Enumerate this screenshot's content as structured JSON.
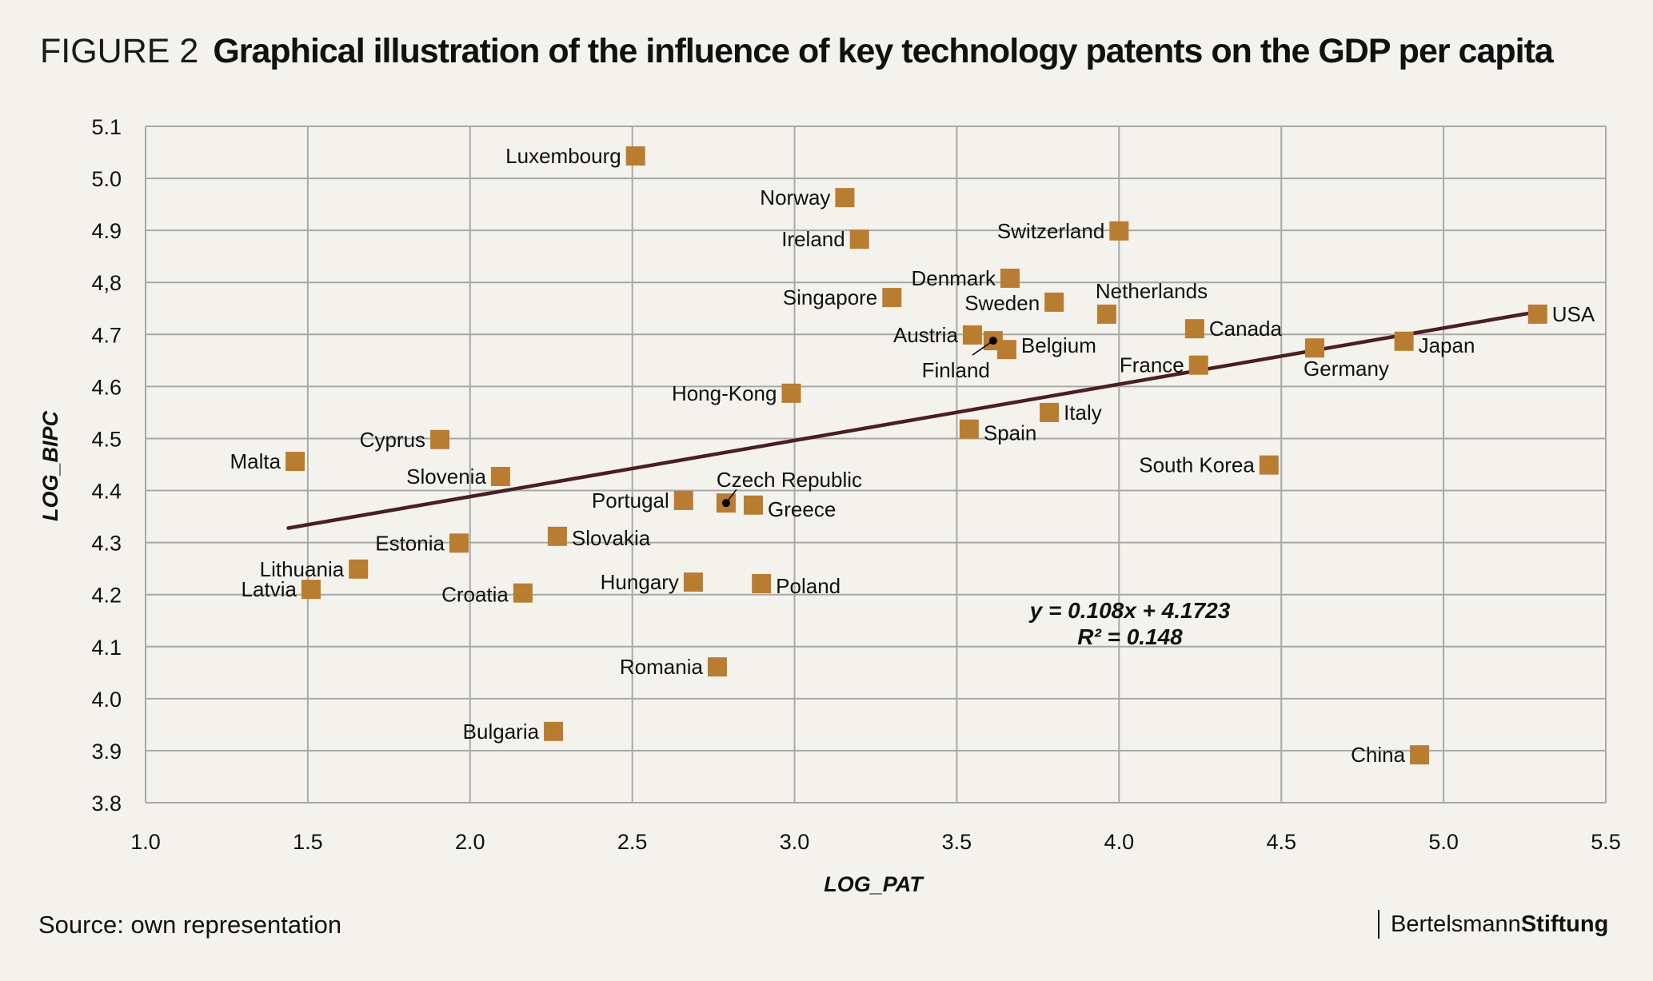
{
  "header": {
    "figure_label": "FIGURE 2",
    "title": "Graphical illustration of the influence of key technology patents on the GDP per capita"
  },
  "footer": {
    "source": "Source: own representation",
    "brand_regular": "Bertelsmann",
    "brand_bold": "Stiftung"
  },
  "colors": {
    "background": "#F3F2EC",
    "marker": "#B97D32",
    "trendline": "#4A1E24",
    "grid": "#A8A8A8"
  },
  "chart_data": {
    "type": "scatter",
    "title": "Graphical illustration of the influence of key technology patents on the GDP per capita",
    "xlabel": "LOG_PAT",
    "ylabel": "LOG_BIPC",
    "xlim": [
      1.0,
      5.5
    ],
    "ylim": [
      3.8,
      5.1
    ],
    "x_ticks": [
      "1.0",
      "1.5",
      "2.0",
      "2.5",
      "3.0",
      "3.5",
      "4.0",
      "4.5",
      "5.0",
      "5.5"
    ],
    "y_ticks": [
      "3.8",
      "3.9",
      "4.0",
      "4.1",
      "4.2",
      "4.3",
      "4.4",
      "4.5",
      "4.6",
      "4.7",
      "4,8",
      "4.9",
      "5.0",
      "5.1"
    ],
    "grid": true,
    "legend": "none",
    "points": [
      {
        "label": "Luxembourg",
        "x": 2.51,
        "y": 5.043,
        "label_pos": "left"
      },
      {
        "label": "Norway",
        "x": 3.155,
        "y": 4.963,
        "label_pos": "left"
      },
      {
        "label": "Ireland",
        "x": 3.2,
        "y": 4.883,
        "label_pos": "left"
      },
      {
        "label": "Switzerland",
        "x": 4.0,
        "y": 4.899,
        "label_pos": "left"
      },
      {
        "label": "Denmark",
        "x": 3.664,
        "y": 4.808,
        "label_pos": "left"
      },
      {
        "label": "Singapore",
        "x": 3.3,
        "y": 4.771,
        "label_pos": "left"
      },
      {
        "label": "Sweden",
        "x": 3.8,
        "y": 4.762,
        "label_pos": "left"
      },
      {
        "label": "Netherlands",
        "x": 3.962,
        "y": 4.739,
        "label_pos": "above"
      },
      {
        "label": "Canada",
        "x": 4.233,
        "y": 4.711,
        "label_pos": "right"
      },
      {
        "label": "USA",
        "x": 5.29,
        "y": 4.739,
        "label_pos": "right"
      },
      {
        "label": "Austria",
        "x": 3.548,
        "y": 4.699,
        "label_pos": "left"
      },
      {
        "label": "Finland",
        "x": 3.612,
        "y": 4.688,
        "label_pos": "leader"
      },
      {
        "label": "Belgium",
        "x": 3.654,
        "y": 4.671,
        "label_pos": "right"
      },
      {
        "label": "Japan",
        "x": 4.878,
        "y": 4.687,
        "label_pos": "right"
      },
      {
        "label": "Germany",
        "x": 4.603,
        "y": 4.674,
        "label_pos": "below"
      },
      {
        "label": "France",
        "x": 4.245,
        "y": 4.641,
        "label_pos": "left"
      },
      {
        "label": "Hong-Kong",
        "x": 2.99,
        "y": 4.587,
        "label_pos": "left"
      },
      {
        "label": "Italy",
        "x": 3.785,
        "y": 4.55,
        "label_pos": "right"
      },
      {
        "label": "Spain",
        "x": 3.538,
        "y": 4.518,
        "label_pos": "right"
      },
      {
        "label": "Cyprus",
        "x": 1.907,
        "y": 4.498,
        "label_pos": "left"
      },
      {
        "label": "Malta",
        "x": 1.461,
        "y": 4.456,
        "label_pos": "left"
      },
      {
        "label": "South Korea",
        "x": 4.462,
        "y": 4.449,
        "label_pos": "left"
      },
      {
        "label": "Slovenia",
        "x": 2.094,
        "y": 4.427,
        "label_pos": "left"
      },
      {
        "label": "Portugal",
        "x": 2.658,
        "y": 4.381,
        "label_pos": "left"
      },
      {
        "label": "Czech Republic",
        "x": 2.789,
        "y": 4.376,
        "label_pos": "leader"
      },
      {
        "label": "Greece",
        "x": 2.873,
        "y": 4.372,
        "label_pos": "right"
      },
      {
        "label": "Slovakia",
        "x": 2.269,
        "y": 4.312,
        "label_pos": "right"
      },
      {
        "label": "Estonia",
        "x": 1.966,
        "y": 4.299,
        "label_pos": "left"
      },
      {
        "label": "Lithuania",
        "x": 1.656,
        "y": 4.249,
        "label_pos": "left"
      },
      {
        "label": "Hungary",
        "x": 2.688,
        "y": 4.224,
        "label_pos": "left"
      },
      {
        "label": "Poland",
        "x": 2.898,
        "y": 4.221,
        "label_pos": "right"
      },
      {
        "label": "Latvia",
        "x": 1.51,
        "y": 4.21,
        "label_pos": "left"
      },
      {
        "label": "Croatia",
        "x": 2.163,
        "y": 4.203,
        "label_pos": "left"
      },
      {
        "label": "Romania",
        "x": 2.762,
        "y": 4.061,
        "label_pos": "left"
      },
      {
        "label": "Bulgaria",
        "x": 2.257,
        "y": 3.937,
        "label_pos": "left"
      },
      {
        "label": "China",
        "x": 4.926,
        "y": 3.892,
        "label_pos": "left"
      }
    ],
    "trendline": {
      "type": "linear",
      "slope": 0.108,
      "intercept": 4.1723,
      "x_range": [
        1.44,
        5.29
      ],
      "equation_label": "y = 0.108x + 4.1723",
      "r2_label": "R² = 0.148"
    }
  }
}
